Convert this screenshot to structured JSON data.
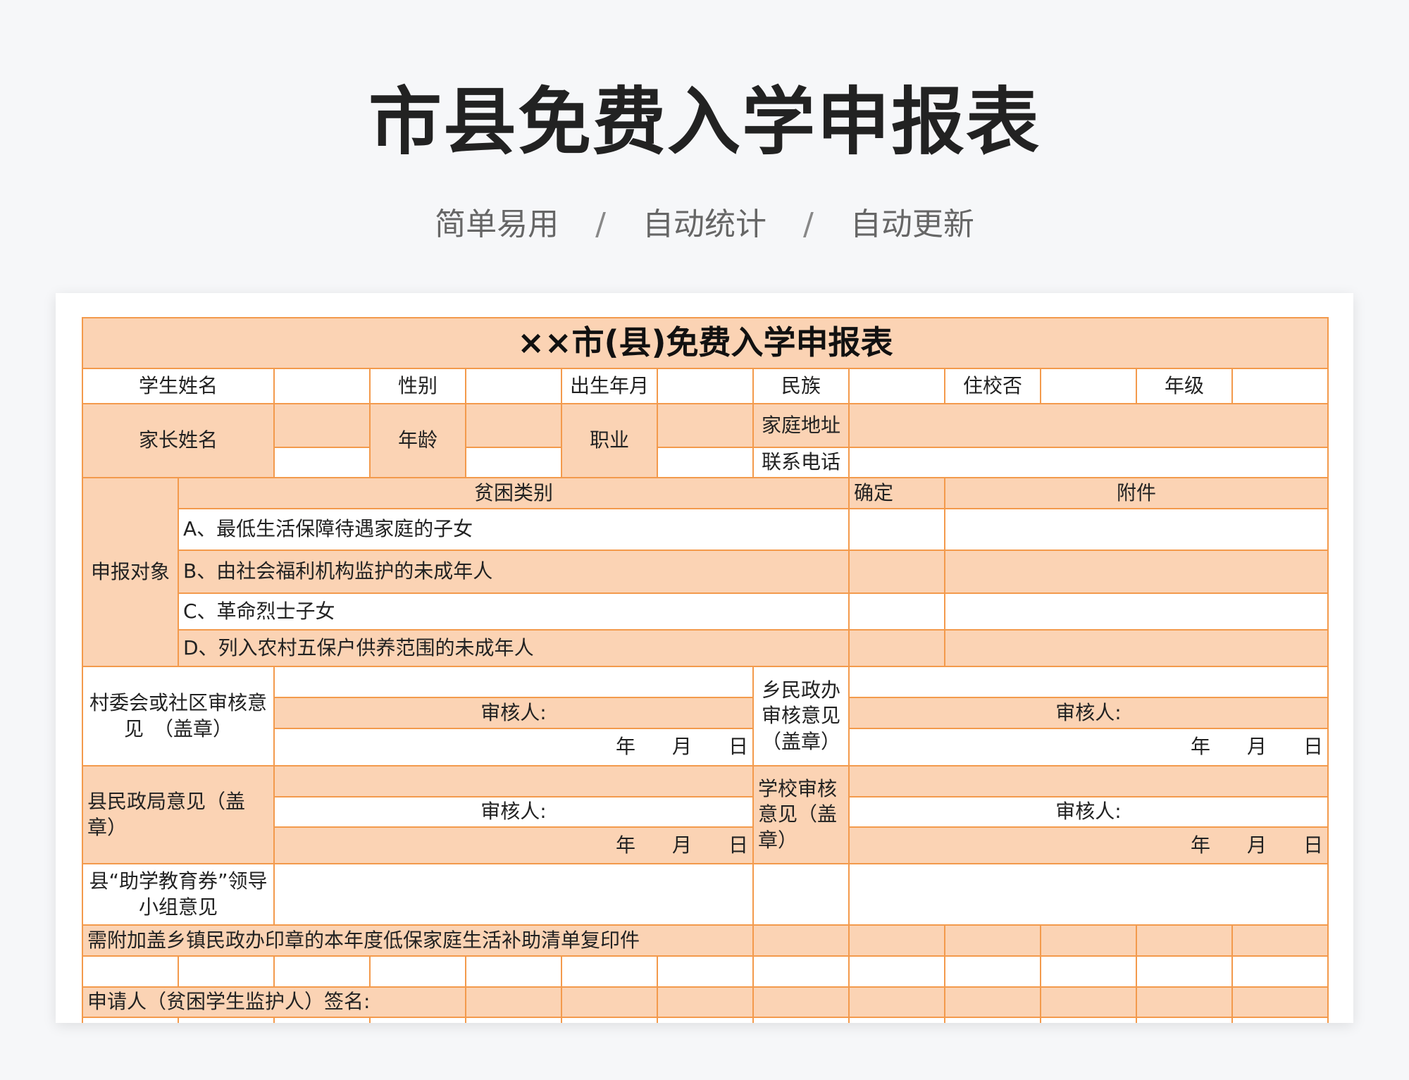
{
  "header": {
    "title": "市县免费入学申报表",
    "tags": [
      "简单易用",
      "自动统计",
      "自动更新"
    ],
    "separator": "/"
  },
  "form": {
    "title": "××市(县)免费入学申报表",
    "student_name": "学生姓名",
    "gender": "性别",
    "birth": "出生年月",
    "ethnicity": "民族",
    "boarding": "住校否",
    "grade": "年级",
    "parent_name": "家长姓名",
    "age": "年龄",
    "occupation": "职业",
    "address": "家庭地址",
    "phone": "联系电话",
    "applicant_type": "申报对象",
    "poverty_category": "贫困类别",
    "confirm": "确定",
    "attachment": "附件",
    "categories": [
      "A、最低生活保障待遇家庭的子女",
      "B、由社会福利机构监护的未成年人",
      "C、革命烈士子女",
      "D、列入农村五保户供养范围的未成年人"
    ],
    "village_opinion": "村委会或社区审核意见　（盖章）",
    "township_opinion": "乡民政办审核意见（盖章）",
    "county_opinion": "县民政局意见（盖章）",
    "school_opinion": "学校审核意见（盖章）",
    "reviewer": "审核人:",
    "date": {
      "year": "年",
      "month": "月",
      "day": "日"
    },
    "voucher_opinion": "县“助学教育券”领导小组意见",
    "attach_note": "需附加盖乡镇民政办印章的本年度低保家庭生活补助清单复印件",
    "signature": "申请人（贫困学生监护人）签名:"
  },
  "colors": {
    "border": "#f39a4c",
    "fill": "#fbd3b4"
  }
}
